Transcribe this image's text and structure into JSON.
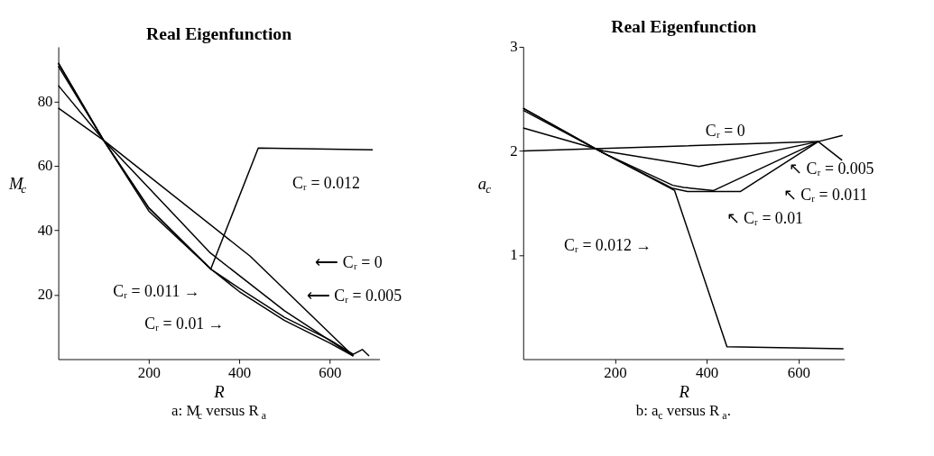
{
  "chart_data": [
    {
      "type": "line",
      "title": "Real Eigenfunction",
      "xlabel": "R",
      "ylabel": "M$_{c}$",
      "xlim": [
        0,
        710
      ],
      "ylim": [
        0,
        97
      ],
      "xticks": [
        200,
        400,
        600
      ],
      "yticks": [
        20,
        40,
        60,
        80
      ],
      "grid": false,
      "marker": "none",
      "line_style": "solid",
      "series": [
        {
          "color": "#000000",
          "x": [
            0,
            100,
            424,
            652
          ],
          "values": [
            78,
            68,
            32,
            1
          ]
        },
        {
          "color": "#000000",
          "x": [
            0,
            100,
            336,
            500,
            652
          ],
          "values": [
            85,
            68,
            33,
            15,
            1
          ]
        },
        {
          "color": "#000000",
          "x": [
            0,
            100,
            200,
            337,
            400,
            500,
            600,
            652
          ],
          "values": [
            91,
            68,
            46,
            28,
            21,
            12,
            5,
            1
          ]
        },
        {
          "color": "#000000",
          "x": [
            0,
            100,
            200,
            337,
            400,
            500,
            600,
            652,
            672,
            687
          ],
          "values": [
            92,
            68,
            47,
            28,
            22,
            13,
            6,
            1.5,
            3,
            1
          ]
        },
        {
          "color": "#000000",
          "x": [
            0,
            100,
            200,
            337,
            442,
            695
          ],
          "values": [
            92,
            68,
            47,
            28,
            65.6,
            65
          ]
        }
      ],
      "annotations": [
        "Cᵣ = 0.012",
        "⟵ Cᵣ = 0",
        "⟵ Cᵣ = 0.005",
        "Cᵣ = 0.011 →",
        "Cᵣ = 0.01 →",
        "a: M$_{c}$ versus R$_{a}$"
      ]
    },
    {
      "type": "line",
      "title": "Real Eigenfunction",
      "xlabel": "R",
      "ylabel": "a$_{c}$",
      "xlim": [
        0,
        700
      ],
      "ylim": [
        0,
        3
      ],
      "xticks": [
        200,
        400,
        600
      ],
      "yticks": [
        1,
        2,
        3
      ],
      "grid": false,
      "marker": "none",
      "line_style": "solid",
      "series": [
        {
          "color": "#000000",
          "x": [
            0,
            643,
            696
          ],
          "values": [
            2.0,
            2.09,
            2.15
          ]
        },
        {
          "color": "#000000",
          "x": [
            0,
            175,
            383,
            643,
            695
          ],
          "values": [
            2.22,
            2.0,
            1.85,
            2.09,
            1.91
          ]
        },
        {
          "color": "#000000",
          "x": [
            0,
            175,
            326,
            358,
            473,
            643
          ],
          "values": [
            2.39,
            1.98,
            1.64,
            1.61,
            1.61,
            2.09
          ]
        },
        {
          "color": "#000000",
          "x": [
            0,
            175,
            326,
            350,
            415,
            619,
            643
          ],
          "values": [
            2.41,
            1.98,
            1.67,
            1.65,
            1.62,
            2.04,
            2.09
          ]
        },
        {
          "color": "#000000",
          "x": [
            0,
            175,
            330,
            444,
            698
          ],
          "values": [
            2.41,
            1.98,
            1.62,
            0.12,
            0.1
          ]
        }
      ],
      "annotations": [
        "Cᵣ = 0",
        "↖ Cᵣ = 0.005",
        "↖ Cᵣ = 0.011",
        "↖ Cᵣ = 0.01",
        "Cᵣ = 0.012 →",
        "b: a$_{c}$ versus R$_{a}$."
      ]
    }
  ]
}
